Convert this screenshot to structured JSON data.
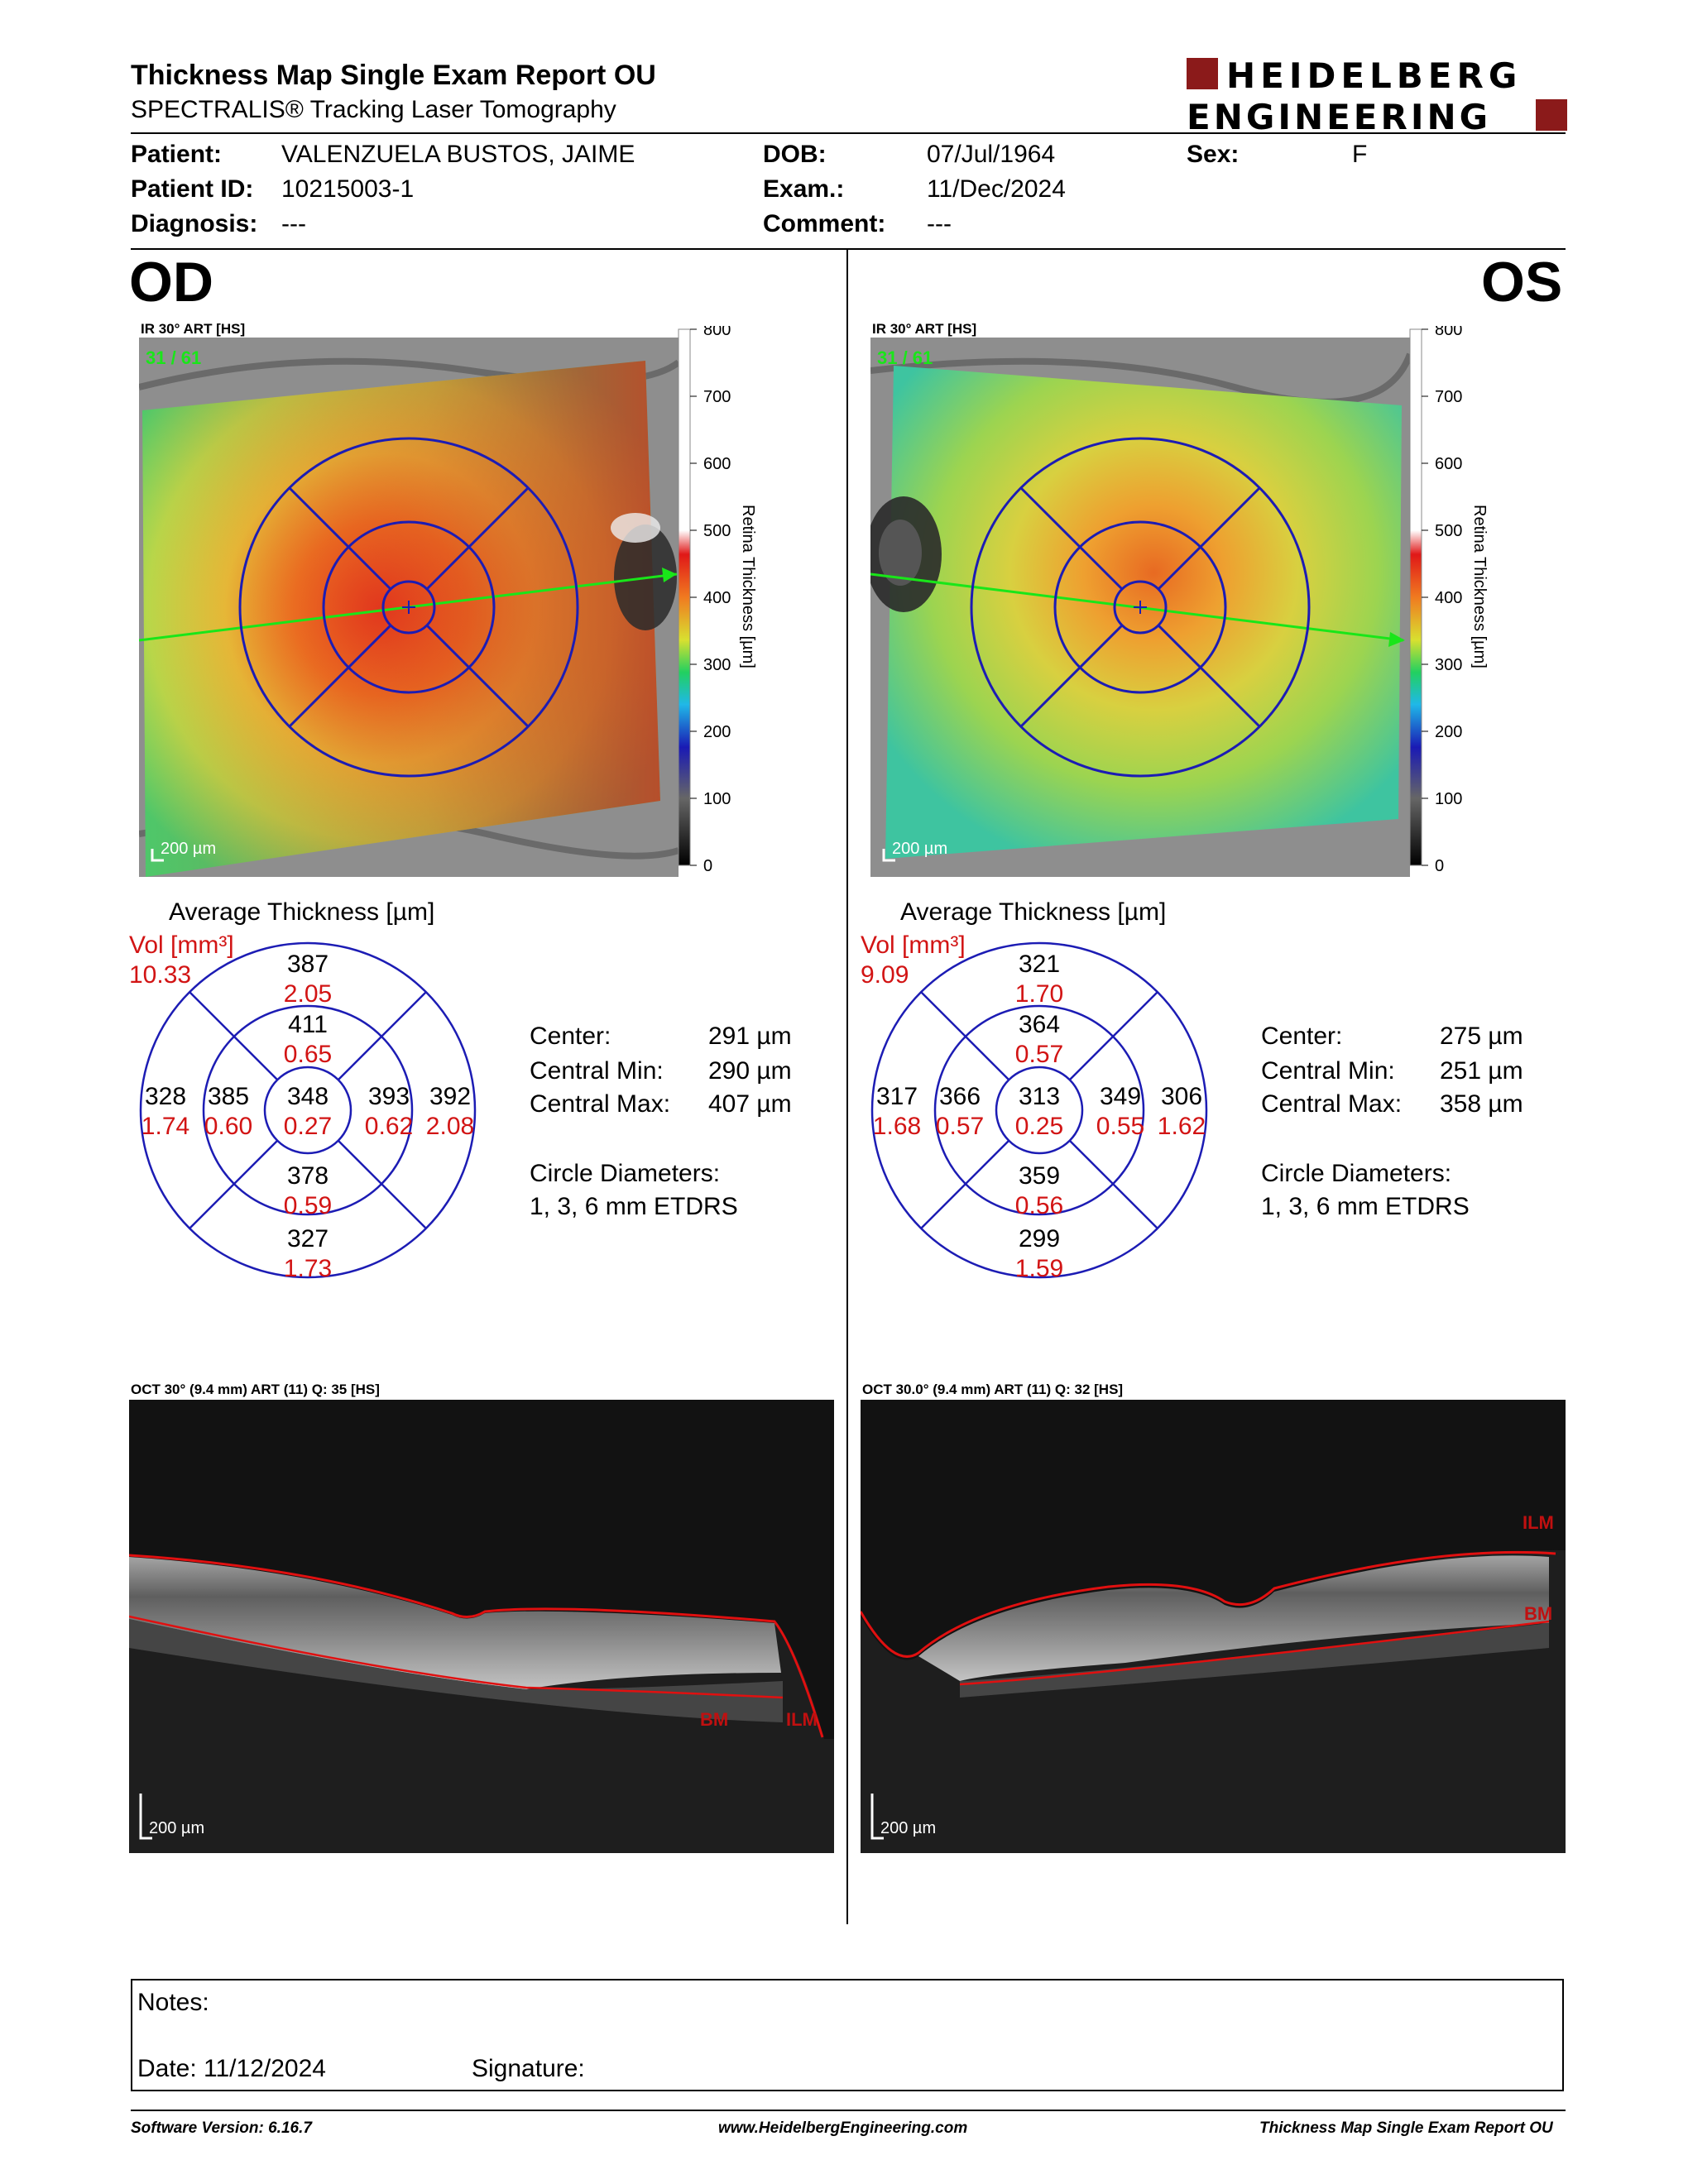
{
  "report": {
    "title": "Thickness Map Single Exam Report OU",
    "subtitle": "SPECTRALIS® Tracking Laser Tomography",
    "logo_line1": "HEIDELBERG",
    "logo_line2": "ENGINEERING"
  },
  "patient": {
    "patient_label": "Patient:",
    "patient_value": "VALENZUELA BUSTOS, JAIME",
    "id_label": "Patient ID:",
    "id_value": "10215003-1",
    "diagnosis_label": "Diagnosis:",
    "diagnosis_value": "---",
    "dob_label": "DOB:",
    "dob_value": "07/Jul/1964",
    "exam_label": "Exam.:",
    "exam_value": "11/Dec/2024",
    "comment_label": "Comment:",
    "comment_value": "---",
    "sex_label": "Sex:",
    "sex_value": "F"
  },
  "colors": {
    "grid_blue": "#1c1cb4",
    "vol_red": "#d21414",
    "arrow_green": "#19e619",
    "ilm_red": "#e01010"
  },
  "od": {
    "eye_label": "OD",
    "fundus_caption": "IR 30° ART [HS]",
    "frame_counter": "31 / 61",
    "scale_label": "200 µm",
    "colorbar_ticks": [
      "800",
      "700",
      "600",
      "500",
      "400",
      "300",
      "200",
      "100",
      "0"
    ],
    "colorbar_title": "Retina Thickness [µm]",
    "avg_title": "Average Thickness [µm]",
    "vol_label": "Vol [mm³]",
    "vol_total": "10.33",
    "sectors": {
      "outer_sup": {
        "t": "387",
        "v": "2.05"
      },
      "inner_sup": {
        "t": "411",
        "v": "0.65"
      },
      "outer_temp": {
        "t": "328",
        "v": "1.74"
      },
      "inner_temp": {
        "t": "385",
        "v": "0.60"
      },
      "center": {
        "t": "348",
        "v": "0.27"
      },
      "inner_nas": {
        "t": "393",
        "v": "0.62"
      },
      "outer_nas": {
        "t": "392",
        "v": "2.08"
      },
      "inner_inf": {
        "t": "378",
        "v": "0.59"
      },
      "outer_inf": {
        "t": "327",
        "v": "1.73"
      }
    },
    "stats": {
      "center_label": "Center:",
      "center_value": "291 µm",
      "min_label": "Central Min:",
      "min_value": "290 µm",
      "max_label": "Central Max:",
      "max_value": "407 µm",
      "circle_label": "Circle Diameters:",
      "circle_value": "1, 3, 6 mm ETDRS"
    },
    "oct_caption": "OCT 30° (9.4 mm) ART (11) Q: 35 [HS]",
    "oct_scale": "200 µm",
    "bm_label": "BM",
    "ilm_label": "ILM"
  },
  "os": {
    "eye_label": "OS",
    "fundus_caption": "IR 30° ART [HS]",
    "frame_counter": "31 / 61",
    "scale_label": "200 µm",
    "colorbar_ticks": [
      "800",
      "700",
      "600",
      "500",
      "400",
      "300",
      "200",
      "100",
      "0"
    ],
    "colorbar_title": "Retina Thickness [µm]",
    "avg_title": "Average Thickness [µm]",
    "vol_label": "Vol [mm³]",
    "vol_total": "9.09",
    "sectors": {
      "outer_sup": {
        "t": "321",
        "v": "1.70"
      },
      "inner_sup": {
        "t": "364",
        "v": "0.57"
      },
      "outer_temp": {
        "t": "317",
        "v": "1.68"
      },
      "inner_temp": {
        "t": "366",
        "v": "0.57"
      },
      "center": {
        "t": "313",
        "v": "0.25"
      },
      "inner_nas": {
        "t": "349",
        "v": "0.55"
      },
      "outer_nas": {
        "t": "306",
        "v": "1.62"
      },
      "inner_inf": {
        "t": "359",
        "v": "0.56"
      },
      "outer_inf": {
        "t": "299",
        "v": "1.59"
      }
    },
    "stats": {
      "center_label": "Center:",
      "center_value": "275 µm",
      "min_label": "Central Min:",
      "min_value": "251 µm",
      "max_label": "Central Max:",
      "max_value": "358 µm",
      "circle_label": "Circle Diameters:",
      "circle_value": "1, 3, 6 mm ETDRS"
    },
    "oct_caption": "OCT 30.0° (9.4 mm) ART (11) Q: 32 [HS]",
    "oct_scale": "200 µm",
    "ilm_label": "ILM",
    "bm_label": "BM"
  },
  "notes": {
    "notes_label": "Notes:",
    "date_label": "Date: 11/12/2024",
    "signature_label": "Signature:"
  },
  "footer": {
    "software": "Software Version: 6.16.7",
    "website": "www.HeidelbergEngineering.com",
    "report_name": "Thickness Map Single Exam Report OU"
  }
}
